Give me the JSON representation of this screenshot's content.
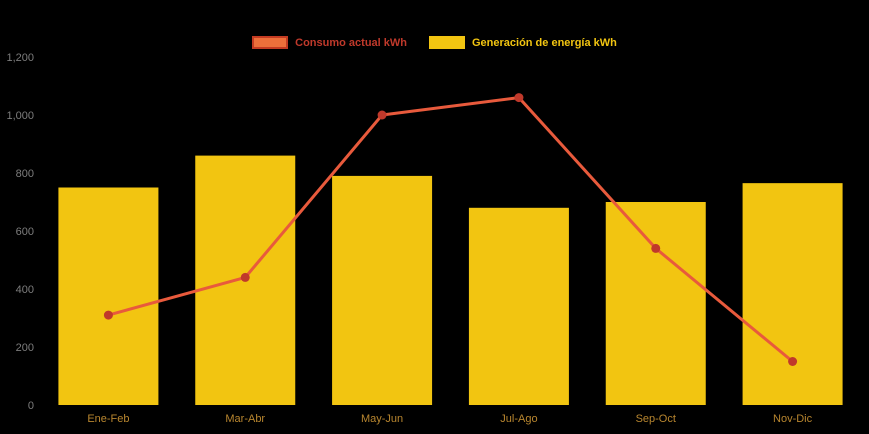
{
  "chart_data": {
    "type": "combo",
    "title": "",
    "categories": [
      "Ene-Feb",
      "Mar-Abr",
      "May-Jun",
      "Jul-Ago",
      "Sep-Oct",
      "Nov-Dic"
    ],
    "series": [
      {
        "name": "Consumo actual kWh",
        "type": "line",
        "color": "#e85a3c",
        "point_color": "#c0392b",
        "label_color": "#c0392b",
        "swatch_fill": "#ed6f3a",
        "swatch_border": "#c43b22",
        "values": [
          310,
          440,
          1000,
          1060,
          540,
          150
        ]
      },
      {
        "name": "Generación de energía kWh",
        "type": "bar",
        "color": "#f2c511",
        "label_color": "#f2c511",
        "swatch_fill": "#f2c511",
        "swatch_border": "#f2c511",
        "values": [
          750,
          860,
          790,
          680,
          700,
          765
        ]
      }
    ],
    "ylim": [
      0,
      1200
    ],
    "ytick_step": 200,
    "ytick_labels": [
      "0",
      "200",
      "400",
      "600",
      "800",
      "1,000",
      "1,200"
    ],
    "grid": false,
    "legend_position": "top",
    "background": "#000000",
    "yaxis_label_color": "#7d7d7d",
    "xaxis_label_color": "#b8862f"
  }
}
